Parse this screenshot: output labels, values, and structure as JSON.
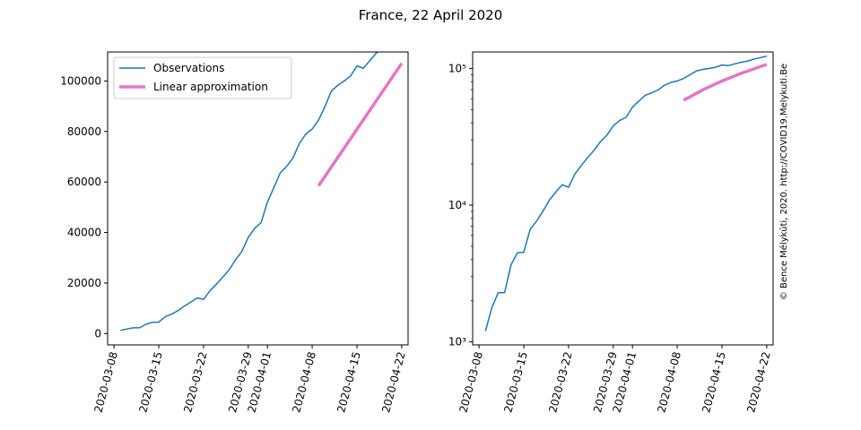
{
  "figure": {
    "title": "France, 22 April 2020",
    "credit": "© Bence Mélykúti, 2020. http://COVID19.Melykuti.Be"
  },
  "colors": {
    "observations": "#1f77b4",
    "approximation": "#e377c2",
    "credit": "#c8c8c8"
  },
  "chart_data": [
    {
      "type": "line",
      "scale": "linear",
      "title": "",
      "xlabel": "",
      "ylabel": "",
      "ylim": [
        -4500,
        111500
      ],
      "xlim": [
        "2020-03-07",
        "2020-04-23"
      ],
      "x_ticks": [
        "2020-03-08",
        "2020-03-15",
        "2020-03-22",
        "2020-03-29",
        "2020-04-01",
        "2020-04-08",
        "2020-04-15",
        "2020-04-22"
      ],
      "y_ticks": [
        0,
        20000,
        40000,
        60000,
        80000,
        100000
      ],
      "y_tick_labels": [
        "0",
        "20000",
        "40000",
        "60000",
        "80000",
        "100000"
      ],
      "legend": {
        "placement": "upper-left",
        "entries": [
          "Observations",
          "Linear approximation"
        ]
      },
      "series": [
        {
          "name": "Observations",
          "x": [
            "2020-03-09",
            "2020-03-10",
            "2020-03-11",
            "2020-03-12",
            "2020-03-13",
            "2020-03-14",
            "2020-03-15",
            "2020-03-16",
            "2020-03-17",
            "2020-03-18",
            "2020-03-19",
            "2020-03-20",
            "2020-03-21",
            "2020-03-22",
            "2020-03-23",
            "2020-03-24",
            "2020-03-25",
            "2020-03-26",
            "2020-03-27",
            "2020-03-28",
            "2020-03-29",
            "2020-03-30",
            "2020-03-31",
            "2020-04-01",
            "2020-04-02",
            "2020-04-03",
            "2020-04-04",
            "2020-04-05",
            "2020-04-06",
            "2020-04-07",
            "2020-04-08",
            "2020-04-09",
            "2020-04-10",
            "2020-04-11",
            "2020-04-12",
            "2020-04-13",
            "2020-04-14",
            "2020-04-15",
            "2020-04-16",
            "2020-04-17",
            "2020-04-18",
            "2020-04-19",
            "2020-04-20",
            "2020-04-21",
            "2020-04-22"
          ],
          "values": [
            1200,
            1780,
            2290,
            2290,
            3660,
            4480,
            4520,
            6650,
            7650,
            9040,
            10870,
            12470,
            14100,
            13500,
            16900,
            19500,
            22300,
            25200,
            29200,
            32500,
            38100,
            41700,
            43900,
            52100,
            57700,
            63600,
            66200,
            69500,
            75300,
            79000,
            81000,
            84500,
            89900,
            96000,
            98300,
            100000,
            102000,
            106000,
            105000,
            108000,
            111000,
            113000,
            117000,
            120000,
            123000
          ]
        },
        {
          "name": "Linear approximation",
          "x": [
            "2020-04-09",
            "2020-04-22"
          ],
          "values": [
            58500,
            107000
          ]
        }
      ]
    },
    {
      "type": "line",
      "scale": "log",
      "title": "",
      "xlabel": "",
      "ylabel": "",
      "ylim": [
        950,
        132000
      ],
      "xlim": [
        "2020-03-07",
        "2020-04-23"
      ],
      "x_ticks": [
        "2020-03-08",
        "2020-03-15",
        "2020-03-22",
        "2020-03-29",
        "2020-04-01",
        "2020-04-08",
        "2020-04-15",
        "2020-04-22"
      ],
      "y_ticks": [
        1000,
        10000,
        100000
      ],
      "y_tick_labels": [
        "10³",
        "10⁴",
        "10⁵"
      ],
      "series": [
        {
          "name": "Observations",
          "x": [
            "2020-03-09",
            "2020-03-10",
            "2020-03-11",
            "2020-03-12",
            "2020-03-13",
            "2020-03-14",
            "2020-03-15",
            "2020-03-16",
            "2020-03-17",
            "2020-03-18",
            "2020-03-19",
            "2020-03-20",
            "2020-03-21",
            "2020-03-22",
            "2020-03-23",
            "2020-03-24",
            "2020-03-25",
            "2020-03-26",
            "2020-03-27",
            "2020-03-28",
            "2020-03-29",
            "2020-03-30",
            "2020-03-31",
            "2020-04-01",
            "2020-04-02",
            "2020-04-03",
            "2020-04-04",
            "2020-04-05",
            "2020-04-06",
            "2020-04-07",
            "2020-04-08",
            "2020-04-09",
            "2020-04-10",
            "2020-04-11",
            "2020-04-12",
            "2020-04-13",
            "2020-04-14",
            "2020-04-15",
            "2020-04-16",
            "2020-04-17",
            "2020-04-18",
            "2020-04-19",
            "2020-04-20",
            "2020-04-21",
            "2020-04-22"
          ],
          "values": [
            1200,
            1780,
            2290,
            2290,
            3660,
            4480,
            4520,
            6650,
            7650,
            9040,
            10870,
            12470,
            14100,
            13500,
            16900,
            19500,
            22300,
            25200,
            29200,
            32500,
            38100,
            41700,
            43900,
            52100,
            57700,
            63600,
            66200,
            69500,
            75300,
            79000,
            81000,
            84500,
            89900,
            96000,
            98300,
            100000,
            102000,
            106000,
            105000,
            108000,
            111000,
            113000,
            117000,
            120000,
            123000
          ]
        },
        {
          "name": "Linear approximation",
          "x": [
            "2020-04-09",
            "2020-04-12",
            "2020-04-15",
            "2020-04-18",
            "2020-04-22"
          ],
          "values": [
            58500,
            69700,
            80900,
            92100,
            107000
          ]
        }
      ]
    }
  ]
}
